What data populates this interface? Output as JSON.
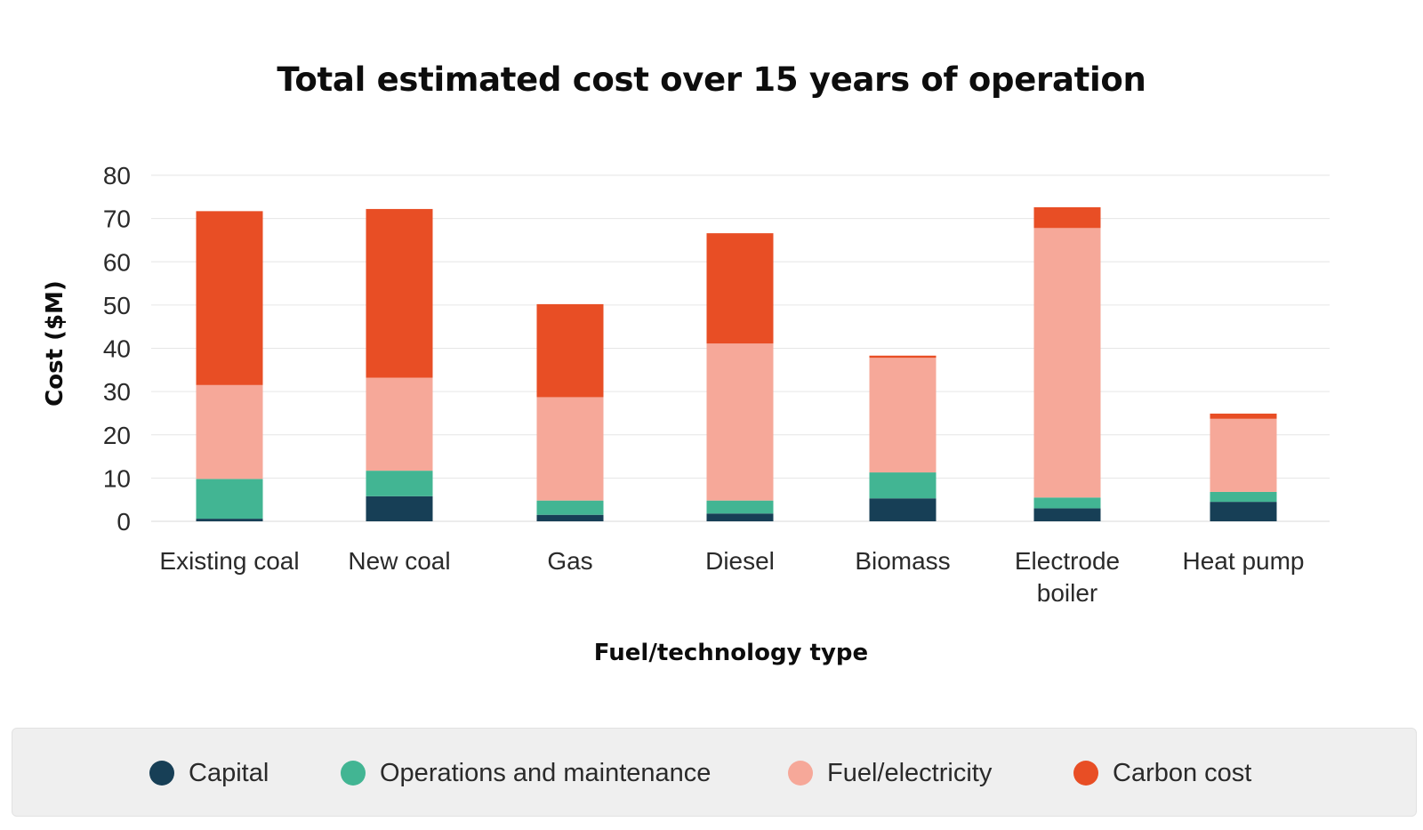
{
  "chart_data": {
    "type": "bar",
    "stacked": true,
    "title": "Total estimated cost over 15 years of operation",
    "xlabel": "Fuel/technology type",
    "ylabel": "Cost ($M)",
    "ylim": [
      0,
      80
    ],
    "yticks": [
      "0",
      "10",
      "20",
      "30",
      "40",
      "50",
      "60",
      "70",
      "80"
    ],
    "grid": true,
    "legend_position": "bottom",
    "categories": [
      [
        "Existing coal"
      ],
      [
        "New coal"
      ],
      [
        "Gas"
      ],
      [
        "Diesel"
      ],
      [
        "Biomass"
      ],
      [
        "Electrode",
        "boiler"
      ],
      [
        "Heat pump"
      ]
    ],
    "series": [
      {
        "name": "Capital",
        "color": "#173f56",
        "values": [
          0.6,
          5.8,
          1.5,
          1.8,
          5.3,
          3.0,
          4.5
        ]
      },
      {
        "name": "Operations and maintenance",
        "color": "#42b593",
        "values": [
          9.2,
          5.9,
          3.3,
          3.0,
          6.0,
          2.5,
          2.3
        ]
      },
      {
        "name": "Fuel/electricity",
        "color": "#f6a899",
        "values": [
          21.7,
          21.5,
          23.9,
          36.3,
          26.5,
          62.3,
          16.9
        ]
      },
      {
        "name": "Carbon cost",
        "color": "#e84e25",
        "values": [
          40.2,
          39.0,
          21.5,
          25.5,
          0.5,
          4.8,
          1.2
        ]
      }
    ]
  }
}
